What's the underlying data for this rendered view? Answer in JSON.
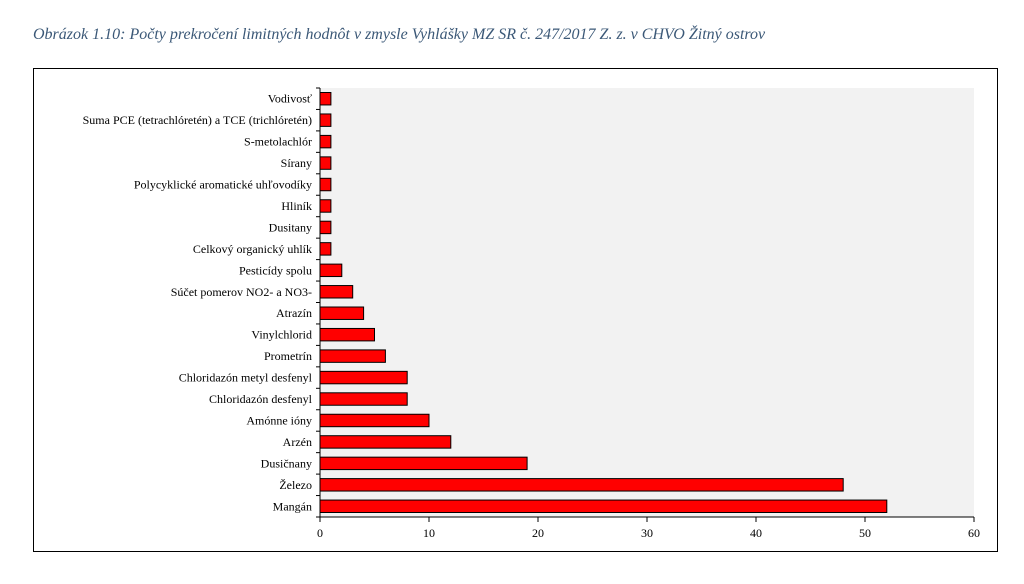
{
  "caption": "Obrázok 1.10: Počty prekročení limitných hodnôt v zmysle Vyhlášky MZ SR č. 247/2017 Z. z. v CHVO Žitný ostrov",
  "chart_data": {
    "type": "bar",
    "orientation": "horizontal",
    "categories": [
      "Vodivosť",
      "Suma PCE (tetrachlóretén) a TCE (trichlóretén)",
      "S-metolachlór",
      "Sírany",
      "Polycyklické aromatické uhľovodíky",
      "Hliník",
      "Dusitany",
      "Celkový organický uhlík",
      "Pesticídy spolu",
      "Súčet pomerov NO2- a NO3-",
      "Atrazín",
      "Vinylchlorid",
      "Prometrín",
      "Chloridazón metyl desfenyl",
      "Chloridazón desfenyl",
      "Amónne ióny",
      "Arzén",
      "Dusičnany",
      "Železo",
      "Mangán"
    ],
    "values": [
      1,
      1,
      1,
      1,
      1,
      1,
      1,
      1,
      2,
      3,
      4,
      5,
      6,
      8,
      8,
      10,
      12,
      19,
      48,
      52
    ],
    "xlim": [
      0,
      60
    ],
    "xticks": [
      0,
      10,
      20,
      30,
      40,
      50,
      60
    ],
    "grid": false,
    "legend": "none",
    "colors": {
      "bar_fill": "#ff0000",
      "bar_stroke": "#000000",
      "plot_bg": "#f2f2f2"
    }
  }
}
